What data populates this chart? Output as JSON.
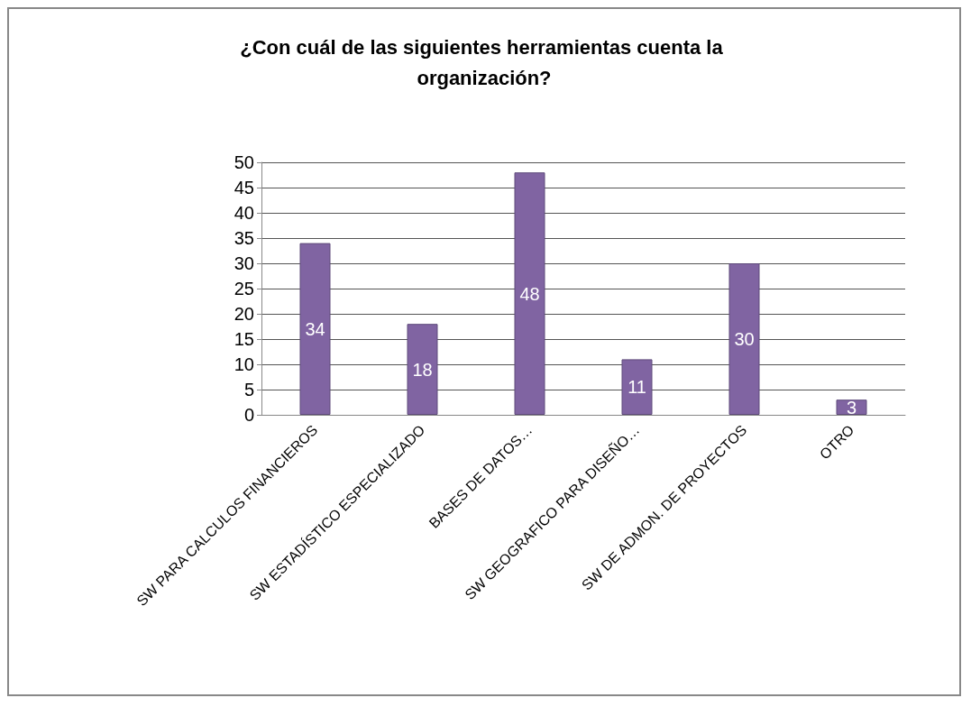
{
  "chart_data": {
    "type": "bar",
    "title": "¿Con cuál de las siguientes herramientas cuenta la organización?",
    "categories": [
      "SW PARA CALCULOS FINANCIEROS",
      "SW ESTADÍSTICO ESPECIALIZADO",
      "BASES DE DATOS…",
      "SW GEOGRAFICO PARA DISEÑO…",
      "SW DE ADMON. DE PROYECTOS",
      "OTRO"
    ],
    "values": [
      34,
      18,
      48,
      11,
      30,
      3
    ],
    "color": "#8064a2",
    "ylim": [
      0,
      50
    ],
    "yticks": [
      0,
      5,
      10,
      15,
      20,
      25,
      30,
      35,
      40,
      45,
      50
    ],
    "grid": true,
    "data_labels": true
  }
}
